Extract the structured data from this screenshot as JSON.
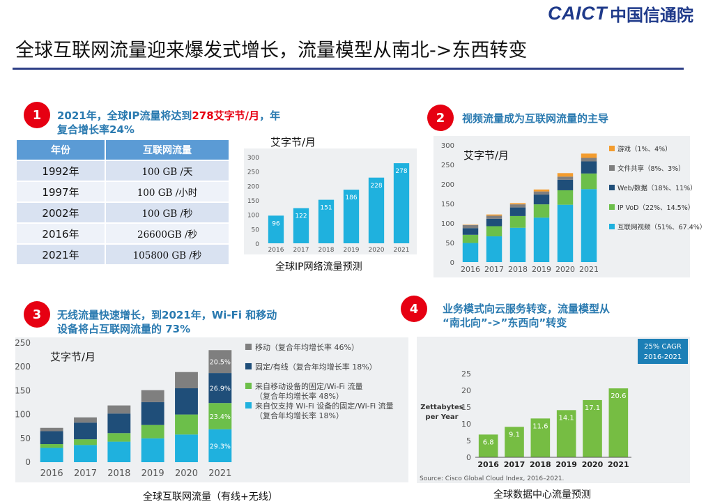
{
  "logo": {
    "en": "CAICT",
    "cn": "中国信通院"
  },
  "title": "全球互联网流量迎来爆发式增长，流量模型从南北->东西转变",
  "sections": [
    {
      "num": "1",
      "line1_pre": "2021年，全球IP流量将达到",
      "line1_hl": "278艾字节/月",
      "line1_post": "，年",
      "line2": "复合增长率24%"
    },
    {
      "num": "2",
      "text": "视频流量成为互联网流量的主导"
    },
    {
      "num": "3",
      "line1": "无线流量快速增长，到2021年，Wi-Fi 和移动",
      "line2": "设备将占互联网流量的 73%"
    },
    {
      "num": "4",
      "line1": "业务模式向云服务转变，流量模型从",
      "line2": "“南北向”->”东西向”转变"
    }
  ],
  "table": {
    "headers": [
      "年份",
      "互联网流量"
    ],
    "rows": [
      [
        "1992年",
        "100 GB /天"
      ],
      [
        "1997年",
        "100 GB /小时"
      ],
      [
        "2002年",
        "100 GB /秒"
      ],
      [
        "2016年",
        "26600GB /秒"
      ],
      [
        "2021年",
        "105800 GB /秒"
      ]
    ]
  },
  "chart_data": [
    {
      "type": "bar",
      "ylabel": "艾字节/月",
      "caption": "全球IP网络流量预测",
      "categories": [
        "2016",
        "2017",
        "2018",
        "2019",
        "2020",
        "2021"
      ],
      "values": [
        96,
        122,
        151,
        186,
        228,
        278
      ],
      "yticks": [
        0,
        50,
        100,
        150,
        200,
        250,
        300
      ],
      "ylim": [
        0,
        300
      ],
      "colors": {
        "bar": "#1fb1de"
      }
    },
    {
      "type": "bar",
      "stacked": true,
      "ylabel": "艾字节/月",
      "categories": [
        "2016",
        "2017",
        "2018",
        "2019",
        "2020",
        "2021"
      ],
      "yticks": [
        0,
        50,
        100,
        150,
        200,
        250,
        300
      ],
      "ylim": [
        0,
        300
      ],
      "legend_position": "right",
      "series": [
        {
          "name": "互联网视频（51%、67.4%）",
          "color": "#1fb1de",
          "values": [
            49,
            66,
            88,
            114,
            147,
            187
          ]
        },
        {
          "name": "IP VoD（22%、14.5%）",
          "color": "#6cbf4a",
          "values": [
            21,
            26,
            30,
            34,
            37,
            40
          ]
        },
        {
          "name": "Web/数据（18%、11%）",
          "color": "#1f4e79",
          "values": [
            17,
            19,
            22,
            25,
            27,
            31
          ]
        },
        {
          "name": "文件共享（8%、3%）",
          "color": "#7f7f7f",
          "values": [
            8,
            8,
            8,
            8,
            8,
            9
          ]
        },
        {
          "name": "游戏（1%、4%）",
          "color": "#f39c2e",
          "values": [
            1,
            3,
            3,
            5,
            9,
            11
          ]
        }
      ]
    },
    {
      "type": "bar",
      "stacked": true,
      "ylabel": "艾字节/月",
      "caption": "全球互联网流量（有线+无线）",
      "categories": [
        "2016",
        "2017",
        "2018",
        "2019",
        "2020",
        "2021"
      ],
      "yticks": [
        0,
        50,
        100,
        150,
        200,
        250
      ],
      "ylim": [
        0,
        250
      ],
      "legend_position": "right",
      "series": [
        {
          "name": "来自仅支持 Wi-Fi 设备的固定/Wi-Fi 流量",
          "name2": "（复合年均增长率 18%）",
          "color": "#1fb1de",
          "values": [
            30,
            36,
            43,
            50,
            58,
            69
          ],
          "labels": [
            "",
            "",
            "",
            "",
            "",
            "29.3%"
          ]
        },
        {
          "name": "来自移动设备的固定/Wi-Fi 流量",
          "name2": "（复合年均增长率 48%）",
          "color": "#6cbf4a",
          "values": [
            8,
            12,
            18,
            28,
            42,
            55
          ],
          "labels": [
            "",
            "",
            "",
            "",
            "",
            "23.4%"
          ]
        },
        {
          "name": "固定/有线（复合年均增长率 18%）",
          "name2": "",
          "color": "#1f4e79",
          "values": [
            27,
            35,
            41,
            48,
            55,
            63
          ],
          "labels": [
            "",
            "",
            "",
            "",
            "",
            "26.9%"
          ]
        },
        {
          "name": "移动（复合年均增长率 46%）",
          "name2": "",
          "color": "#7f7f7f",
          "values": [
            7,
            11,
            17,
            25,
            34,
            48
          ],
          "labels": [
            "",
            "",
            "",
            "",
            "",
            "20.5%"
          ]
        }
      ]
    },
    {
      "type": "bar",
      "ylabel": "Zettabytes per Year",
      "ylabel_line1": "Zettabytes",
      "ylabel_line2": "per Year",
      "caption": "全球数据中心流量预测",
      "source": "Source: Cisco Global Cloud Index, 2016–2021.",
      "cagr_line1": "25% CAGR",
      "cagr_line2": "2016-2021",
      "categories": [
        "2016",
        "2017",
        "2018",
        "2019",
        "2020",
        "2021"
      ],
      "values": [
        6.8,
        9.1,
        11.6,
        14.1,
        17.1,
        20.6
      ],
      "yticks": [
        0,
        5,
        10,
        15,
        20,
        25
      ],
      "ylim": [
        0,
        25
      ],
      "colors": {
        "bar": "#76bd43",
        "cagr": "#1c7fb6"
      }
    }
  ]
}
